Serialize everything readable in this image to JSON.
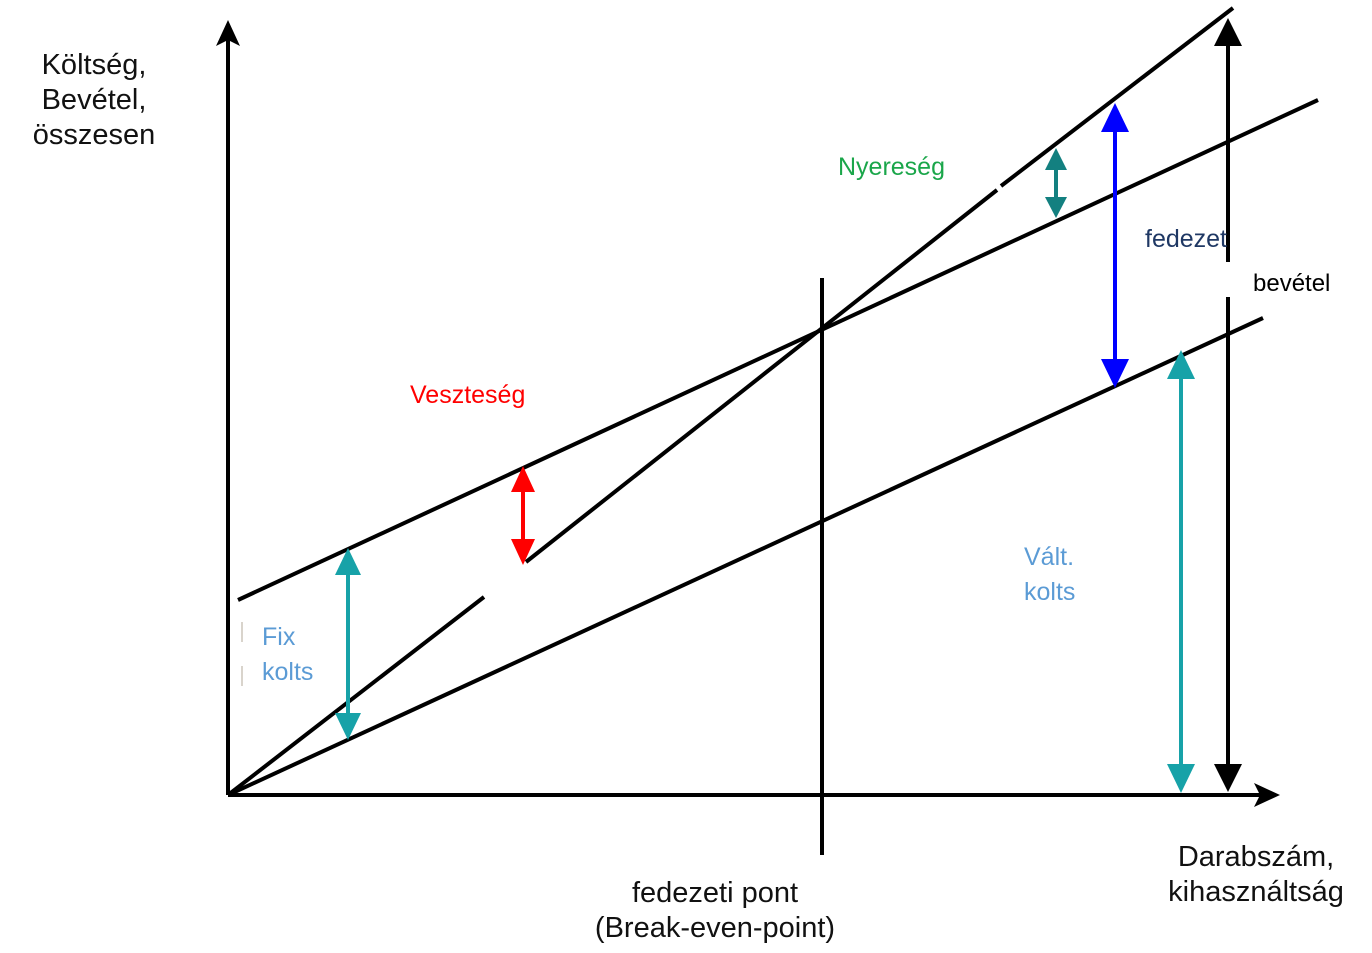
{
  "y_axis_label": [
    "Költség,",
    "Bevétel,",
    "összesen"
  ],
  "x_axis_label": [
    "Darabszám,",
    "kihasználtság"
  ],
  "break_even_label": [
    "fedezeti pont",
    "(Break-even-point)"
  ],
  "annotations": {
    "profit": "Nyereség",
    "loss": "Veszteség",
    "contribution": "fedezet",
    "revenue": "bevétel",
    "variable_cost": [
      "Vált.",
      "kolts"
    ],
    "fixed_cost": [
      "Fix",
      "kolts"
    ]
  },
  "colors": {
    "profit_text": "#1aa64a",
    "loss": "#ff0000",
    "contribution_text": "#1f3864",
    "contribution_arrow": "#0000ff",
    "cost_text": "#5b9bd5",
    "cost_arrow": "#17a2a8",
    "profit_arrow": "#138080",
    "lines": "#000000"
  }
}
